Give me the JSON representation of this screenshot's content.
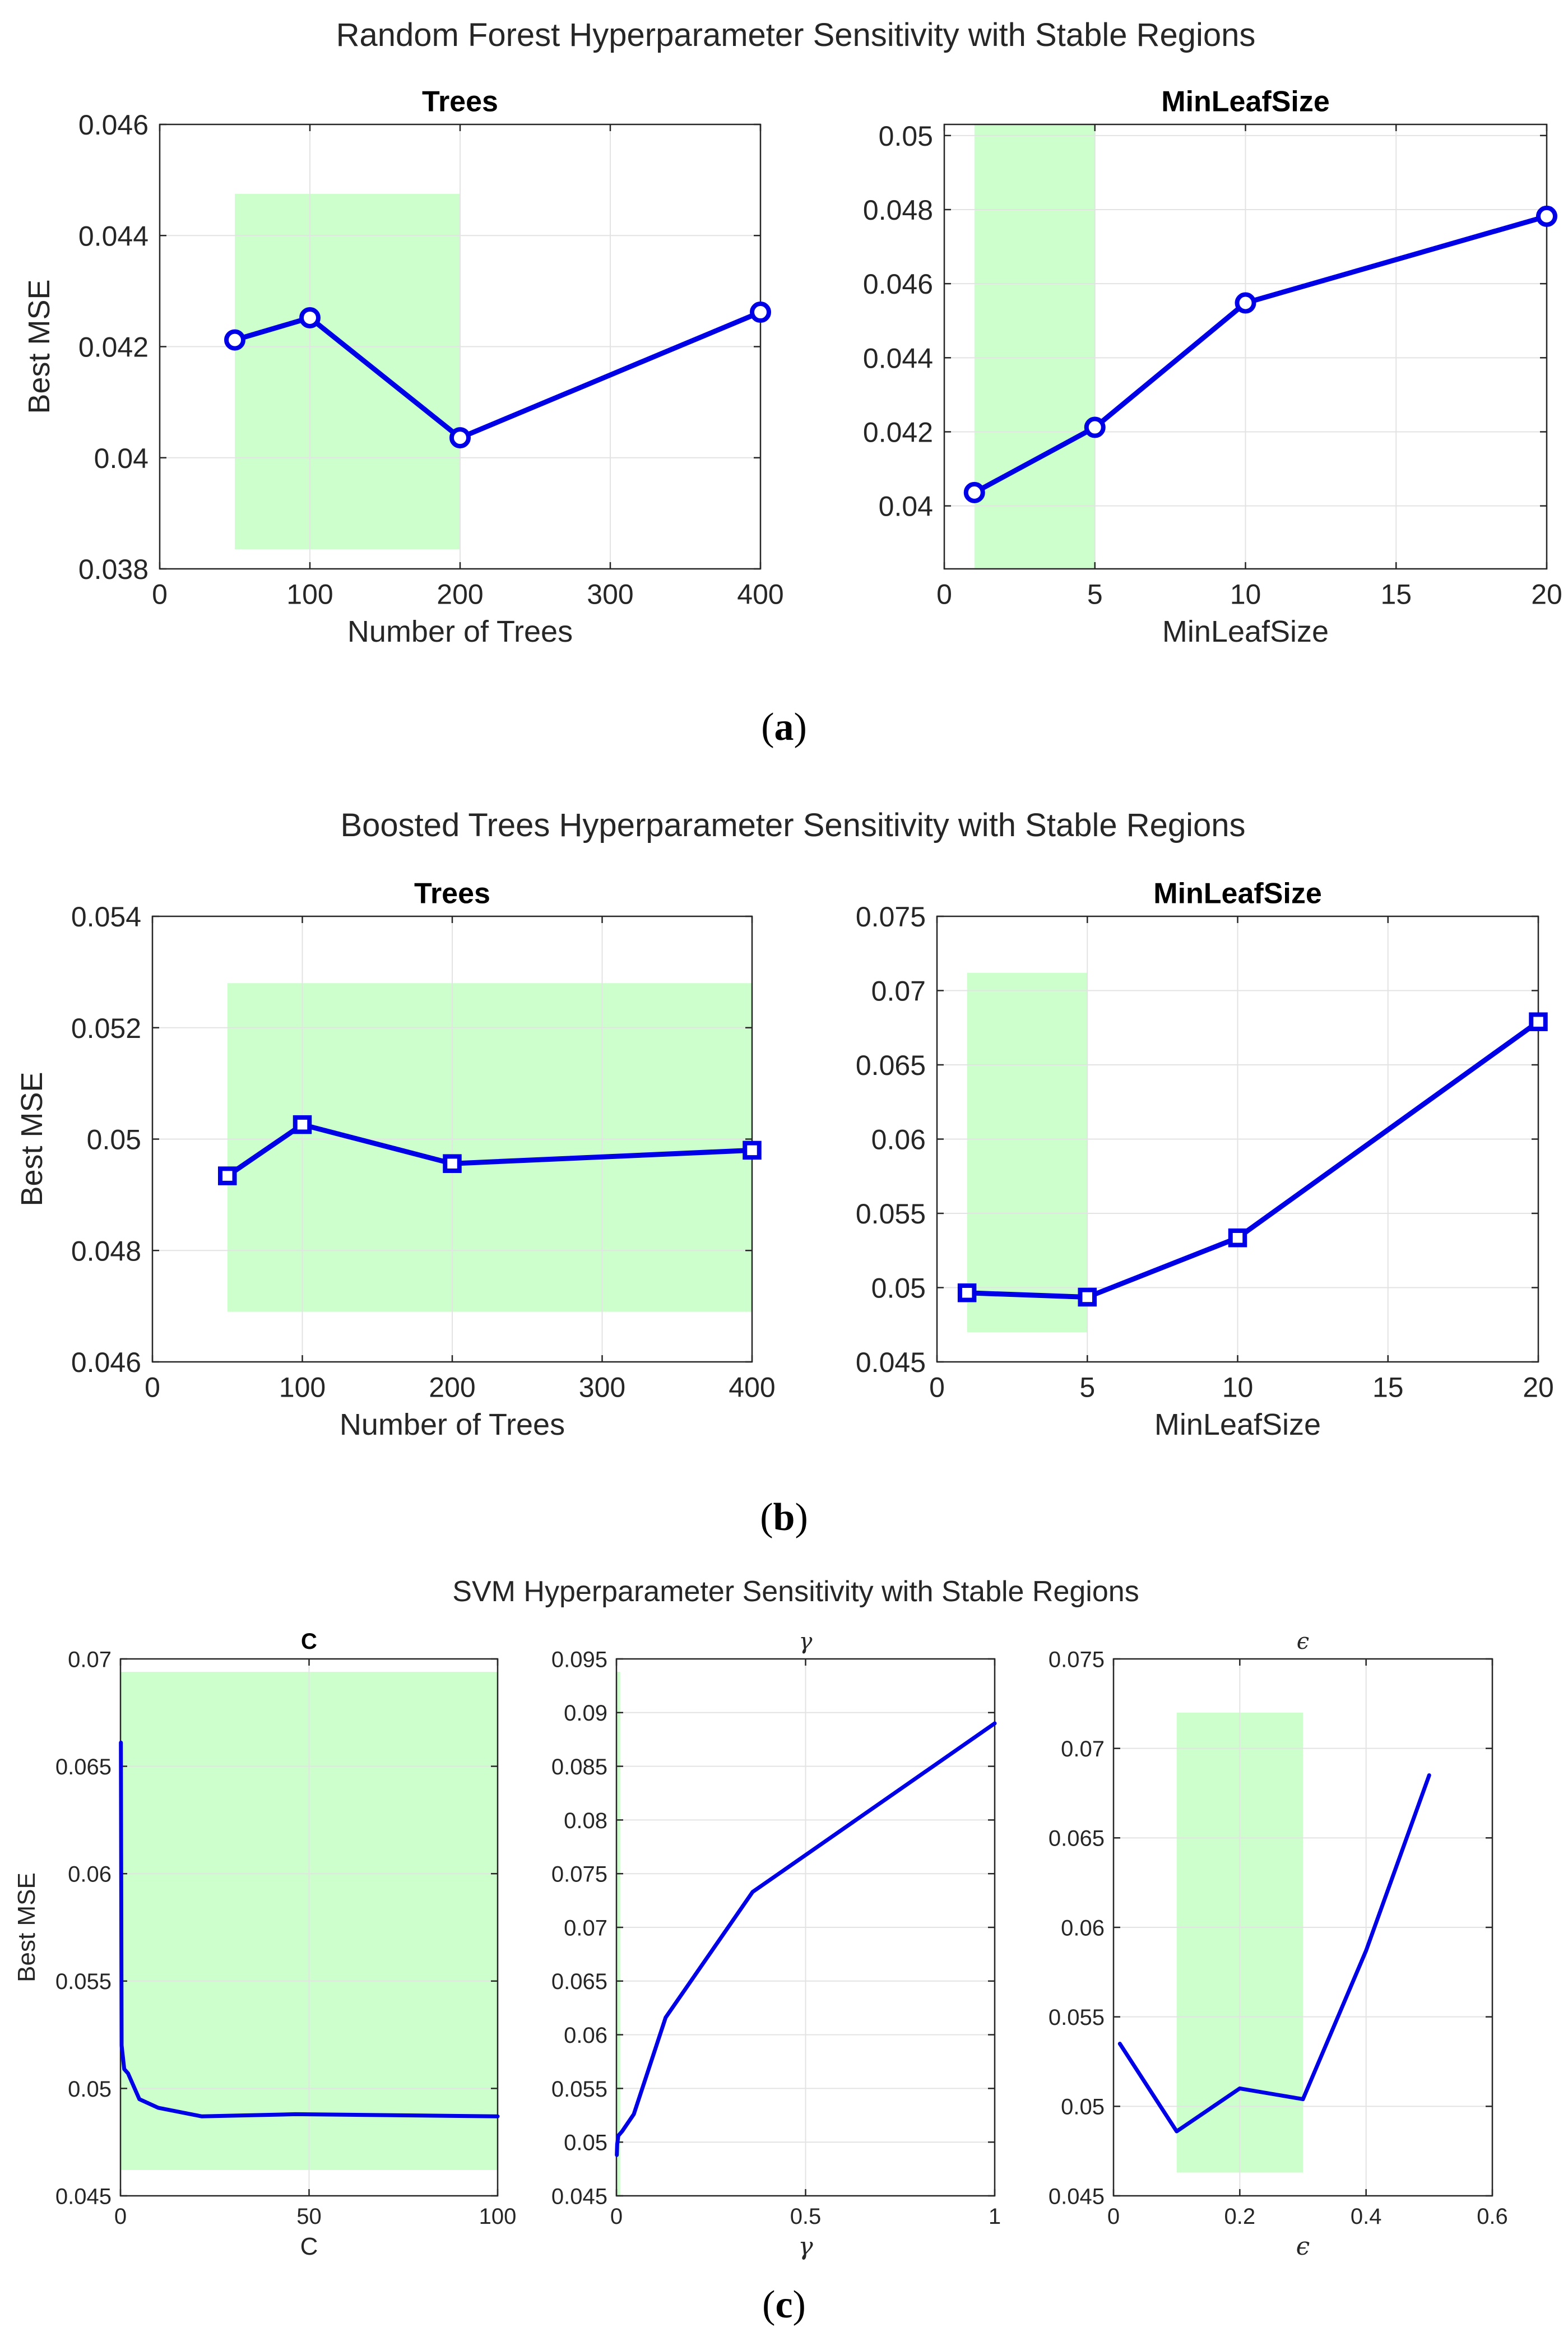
{
  "colors": {
    "line": "#0000e6",
    "stable_region": "#ccffcc",
    "grid": "#e3e3e3",
    "axis": "#262626"
  },
  "chart_data": [
    {
      "id": "rf-trees",
      "panel": "a",
      "type": "line",
      "title": "Trees",
      "xlabel": "Number of Trees",
      "ylabel": "Best MSE",
      "x": [
        50,
        100,
        200,
        400
      ],
      "y": [
        0.04212,
        0.04252,
        0.04036,
        0.04262
      ],
      "marker": "circle",
      "xlim": [
        0,
        400
      ],
      "ylim": [
        0.038,
        0.046
      ],
      "xticks": [
        0,
        100,
        200,
        300,
        400
      ],
      "xtick_labels": [
        "0",
        "100",
        "200",
        "300",
        "400"
      ],
      "yticks": [
        0.038,
        0.04,
        0.042,
        0.044,
        0.046
      ],
      "ytick_labels": [
        "0.038",
        "0.04",
        "0.042",
        "0.044",
        "0.046"
      ],
      "stable_region": {
        "x": [
          50,
          200
        ],
        "y": [
          0.03835,
          0.04475
        ]
      }
    },
    {
      "id": "rf-minleaf",
      "panel": "a",
      "type": "line",
      "title": "MinLeafSize",
      "xlabel": "MinLeafSize",
      "ylabel": "",
      "x": [
        1,
        5,
        10,
        20
      ],
      "y": [
        0.04036,
        0.04212,
        0.04548,
        0.04782
      ],
      "marker": "circle",
      "xlim": [
        0,
        20
      ],
      "ylim": [
        0.0383,
        0.0503
      ],
      "xticks": [
        0,
        5,
        10,
        15,
        20
      ],
      "xtick_labels": [
        "0",
        "5",
        "10",
        "15",
        "20"
      ],
      "yticks": [
        0.04,
        0.042,
        0.044,
        0.046,
        0.048,
        0.05
      ],
      "ytick_labels": [
        "0.04",
        "0.042",
        "0.044",
        "0.046",
        "0.048",
        "0.05"
      ],
      "stable_region": {
        "x": [
          1,
          5
        ],
        "y": [
          0.0383,
          0.0503
        ]
      }
    },
    {
      "id": "bt-trees",
      "panel": "b",
      "type": "line",
      "title": "Trees",
      "xlabel": "Number of Trees",
      "ylabel": "Best MSE",
      "x": [
        50,
        100,
        200,
        400
      ],
      "y": [
        0.04934,
        0.05026,
        0.04956,
        0.0498
      ],
      "marker": "square",
      "xlim": [
        0,
        400
      ],
      "ylim": [
        0.046,
        0.054
      ],
      "xticks": [
        0,
        100,
        200,
        300,
        400
      ],
      "xtick_labels": [
        "0",
        "100",
        "200",
        "300",
        "400"
      ],
      "yticks": [
        0.046,
        0.048,
        0.05,
        0.052,
        0.054
      ],
      "ytick_labels": [
        "0.046",
        "0.048",
        "0.05",
        "0.052",
        "0.054"
      ],
      "stable_region": {
        "x": [
          50,
          400
        ],
        "y": [
          0.0469,
          0.0528
        ]
      }
    },
    {
      "id": "bt-minleaf",
      "panel": "b",
      "type": "line",
      "title": "MinLeafSize",
      "xlabel": "MinLeafSize",
      "ylabel": "",
      "x": [
        1,
        5,
        10,
        20
      ],
      "y": [
        0.04965,
        0.04936,
        0.05335,
        0.0679
      ],
      "marker": "square",
      "xlim": [
        0,
        20
      ],
      "ylim": [
        0.045,
        0.075
      ],
      "xticks": [
        0,
        5,
        10,
        15,
        20
      ],
      "xtick_labels": [
        "0",
        "5",
        "10",
        "15",
        "20"
      ],
      "yticks": [
        0.045,
        0.05,
        0.055,
        0.06,
        0.065,
        0.07,
        0.075
      ],
      "ytick_labels": [
        "0.045",
        "0.05",
        "0.055",
        "0.06",
        "0.065",
        "0.07",
        "0.075"
      ],
      "stable_region": {
        "x": [
          1,
          5
        ],
        "y": [
          0.047,
          0.0712
        ]
      }
    },
    {
      "id": "svm-c",
      "panel": "c",
      "type": "line",
      "title": "C",
      "xlabel": "C",
      "ylabel": "Best MSE",
      "x": [
        0.1,
        0.3,
        1,
        2,
        5,
        10,
        21.5,
        46.4,
        100
      ],
      "y": [
        0.0661,
        0.052,
        0.0509,
        0.0507,
        0.0495,
        0.0491,
        0.0487,
        0.0488,
        0.0487
      ],
      "marker": "none",
      "xlim": [
        0,
        100
      ],
      "ylim": [
        0.045,
        0.07
      ],
      "xticks": [
        0,
        50,
        100
      ],
      "xtick_labels": [
        "0",
        "50",
        "100"
      ],
      "yticks": [
        0.045,
        0.05,
        0.055,
        0.06,
        0.065,
        0.07
      ],
      "ytick_labels": [
        "0.045",
        "0.05",
        "0.055",
        "0.06",
        "0.065",
        "0.07"
      ],
      "stable_region": {
        "x": [
          0.1,
          100
        ],
        "y": [
          0.0462,
          0.0694
        ]
      }
    },
    {
      "id": "svm-gamma",
      "panel": "c",
      "type": "line",
      "title": "γ",
      "xlabel": "γ",
      "ylabel": "",
      "x": [
        0.001,
        0.002,
        0.005,
        0.015,
        0.046,
        0.13,
        0.36,
        1.0
      ],
      "y": [
        0.0488,
        0.0498,
        0.0506,
        0.051,
        0.0526,
        0.0616,
        0.0733,
        0.089
      ],
      "marker": "none",
      "xlim": [
        0,
        1
      ],
      "ylim": [
        0.045,
        0.095
      ],
      "xticks": [
        0,
        0.5,
        1
      ],
      "xtick_labels": [
        "0",
        "0.5",
        "1"
      ],
      "yticks": [
        0.045,
        0.05,
        0.055,
        0.06,
        0.065,
        0.07,
        0.075,
        0.08,
        0.085,
        0.09,
        0.095
      ],
      "ytick_labels": [
        "0.045",
        "0.05",
        "0.055",
        "0.06",
        "0.065",
        "0.07",
        "0.075",
        "0.08",
        "0.085",
        "0.09",
        "0.095"
      ],
      "stable_region": {
        "x": [
          0.001,
          0.01
        ],
        "y": [
          0.045,
          0.0938
        ]
      }
    },
    {
      "id": "svm-epsilon",
      "panel": "c",
      "type": "line",
      "title": "ϵ",
      "xlabel": "ϵ",
      "ylabel": "",
      "x": [
        0.01,
        0.1,
        0.2,
        0.3,
        0.4,
        0.5
      ],
      "y": [
        0.0535,
        0.0486,
        0.051,
        0.0504,
        0.0587,
        0.0685
      ],
      "marker": "none",
      "xlim": [
        0,
        0.6
      ],
      "ylim": [
        0.045,
        0.075
      ],
      "xticks": [
        0,
        0.2,
        0.4,
        0.6
      ],
      "xtick_labels": [
        "0",
        "0.2",
        "0.4",
        "0.6"
      ],
      "yticks": [
        0.045,
        0.05,
        0.055,
        0.06,
        0.065,
        0.07,
        0.075
      ],
      "ytick_labels": [
        "0.045",
        "0.05",
        "0.055",
        "0.06",
        "0.065",
        "0.07",
        "0.075"
      ],
      "stable_region": {
        "x": [
          0.1,
          0.3
        ],
        "y": [
          0.0463,
          0.072
        ]
      }
    }
  ],
  "figures": {
    "a": {
      "title": "Random Forest Hyperparameter Sensitivity with Stable Regions",
      "caption_open": "(",
      "caption_letter": "a",
      "caption_close": ")"
    },
    "b": {
      "title": "Boosted Trees Hyperparameter Sensitivity with Stable Regions",
      "caption_open": "(",
      "caption_letter": "b",
      "caption_close": ")"
    },
    "c": {
      "title": "SVM Hyperparameter Sensitivity with Stable Regions",
      "caption_open": "(",
      "caption_letter": "c",
      "caption_close": ")"
    }
  }
}
